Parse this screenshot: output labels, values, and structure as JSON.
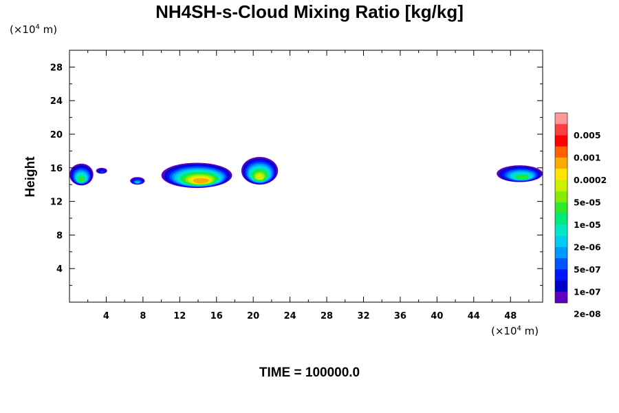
{
  "title": "NH4SH-s-Cloud Mixing Ratio [kg/kg]",
  "unit_prefix": "(×10",
  "unit_exp": "4",
  "unit_suffix": " m)",
  "time_label": "TIME = 100000.0",
  "chart_data": {
    "type": "heatmap",
    "title": "NH4SH-s-Cloud Mixing Ratio [kg/kg]",
    "xlabel": "",
    "ylabel": "Height",
    "x_unit": "(×10^4 m)",
    "y_unit": "(×10^4 m)",
    "xlim": [
      0,
      51.5
    ],
    "ylim": [
      0,
      30
    ],
    "x_ticks": [
      4,
      8,
      12,
      16,
      20,
      24,
      28,
      32,
      36,
      40,
      44,
      48
    ],
    "y_ticks": [
      4,
      8,
      12,
      16,
      20,
      24,
      28
    ],
    "grid": false,
    "colorbar": {
      "labels": [
        "0.005",
        "0.001",
        "0.0002",
        "5e-05",
        "1e-05",
        "2e-06",
        "5e-07",
        "1e-07",
        "2e-08"
      ],
      "colors_top_to_bottom": [
        "#ff9999",
        "#ff4040",
        "#ff0000",
        "#ff6000",
        "#ffaa00",
        "#ffe600",
        "#ccf000",
        "#88ec00",
        "#2ee82e",
        "#00e87a",
        "#00e8c4",
        "#00ccf0",
        "#0099ff",
        "#0055ff",
        "#0015ff",
        "#0000cc",
        "#6000c0"
      ]
    },
    "cloud_features": [
      {
        "x_range": [
          0,
          2.6
        ],
        "y_range": [
          13.9,
          16.5
        ],
        "max": "1e-05"
      },
      {
        "x_range": [
          2.9,
          4.1
        ],
        "y_range": [
          15.3,
          16.0
        ],
        "max": "1e-07"
      },
      {
        "x_range": [
          6.6,
          8.2
        ],
        "y_range": [
          14.0,
          14.9
        ],
        "max": "1e-06"
      },
      {
        "x_range": [
          10.0,
          17.7
        ],
        "y_range": [
          13.6,
          16.6
        ],
        "max": "0.0002"
      },
      {
        "x_range": [
          18.7,
          22.7
        ],
        "y_range": [
          14.0,
          17.3
        ],
        "max": "5e-05"
      },
      {
        "x_range": [
          46.5,
          51.5
        ],
        "y_range": [
          14.3,
          16.3
        ],
        "max": "1e-05"
      }
    ]
  }
}
